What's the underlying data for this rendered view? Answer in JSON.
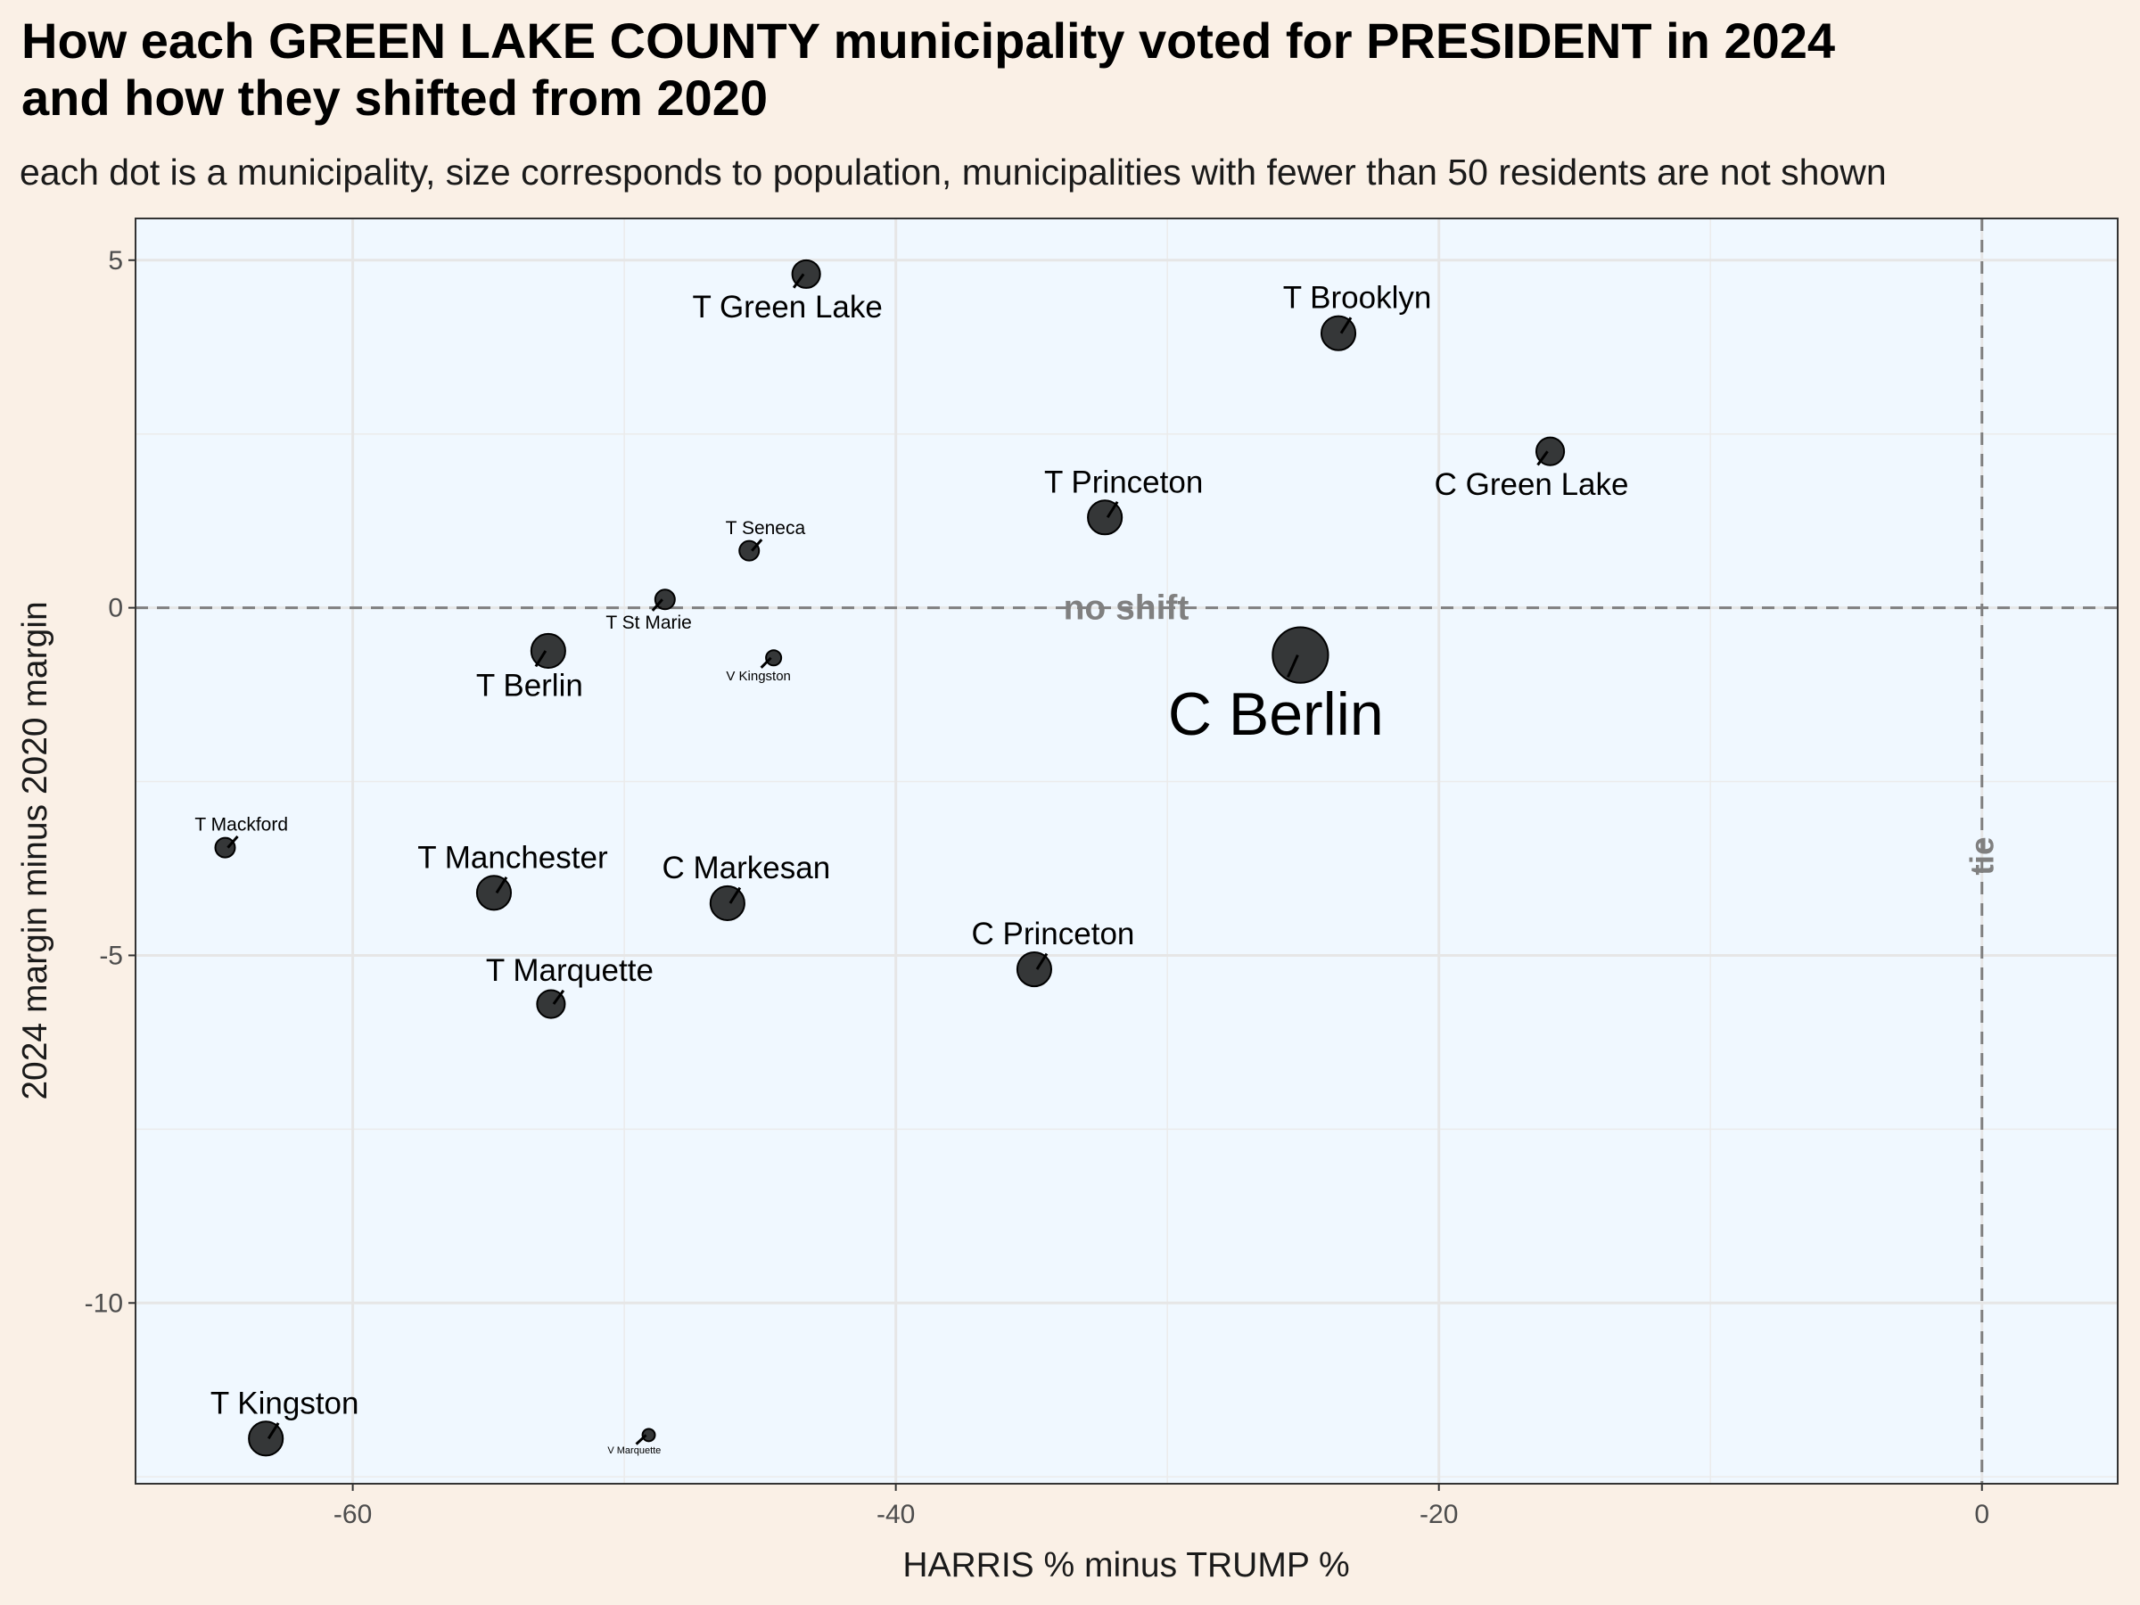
{
  "chart_data": {
    "type": "scatter",
    "title": "How each GREEN LAKE COUNTY municipality voted for PRESIDENT in 2024\nand how they shifted from 2020",
    "subtitle": "each dot is a municipality, size corresponds to population, municipalities with fewer than 50 residents are not shown",
    "xlabel": "HARRIS % minus TRUMP %",
    "ylabel": "2024 margin minus 2020 margin",
    "xlim": [
      -68,
      5
    ],
    "ylim": [
      -12.6,
      5.6
    ],
    "x_ticks": [
      -60,
      -40,
      -20,
      0
    ],
    "y_ticks": [
      5,
      0,
      -5,
      -10
    ],
    "grid": true,
    "reference_lines": [
      {
        "axis": "y",
        "value": 0,
        "label": "no shift"
      },
      {
        "axis": "x",
        "value": 0,
        "label": "tie"
      }
    ],
    "points": [
      {
        "name": "T Green Lake",
        "x": -43.3,
        "y": 4.8,
        "size": 2
      },
      {
        "name": "T Brooklyn",
        "x": -23.7,
        "y": 3.95,
        "size": 3
      },
      {
        "name": "C Green Lake",
        "x": -15.9,
        "y": 2.25,
        "size": 2
      },
      {
        "name": "T Princeton",
        "x": -32.3,
        "y": 1.3,
        "size": 3
      },
      {
        "name": "T Seneca",
        "x": -45.4,
        "y": 0.82,
        "size": 1
      },
      {
        "name": "T St Marie",
        "x": -48.5,
        "y": 0.12,
        "size": 1
      },
      {
        "name": "V Kingston",
        "x": -44.5,
        "y": -0.72,
        "size": 0.6
      },
      {
        "name": "T Berlin",
        "x": -52.8,
        "y": -0.62,
        "size": 3
      },
      {
        "name": "C Berlin",
        "x": -25.1,
        "y": -0.68,
        "size": 8
      },
      {
        "name": "T Mackford",
        "x": -64.7,
        "y": -3.45,
        "size": 1
      },
      {
        "name": "T Manchester",
        "x": -54.8,
        "y": -4.1,
        "size": 3
      },
      {
        "name": "C Markesan",
        "x": -46.2,
        "y": -4.25,
        "size": 3
      },
      {
        "name": "C Princeton",
        "x": -34.9,
        "y": -5.2,
        "size": 3
      },
      {
        "name": "T Marquette",
        "x": -52.7,
        "y": -5.7,
        "size": 2
      },
      {
        "name": "T Kingston",
        "x": -63.2,
        "y": -11.95,
        "size": 3
      },
      {
        "name": "V Marquette",
        "x": -49.1,
        "y": -11.9,
        "size": 0.4
      }
    ]
  }
}
